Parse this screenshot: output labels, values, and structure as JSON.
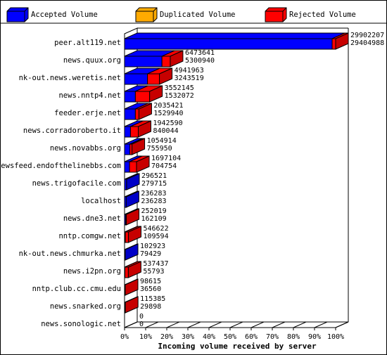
{
  "chart_data": {
    "type": "bar",
    "orientation": "horizontal",
    "stacked": true,
    "xlabel": "Incoming volume received by server",
    "xlim": [
      0,
      100
    ],
    "x_ticks": [
      "0%",
      "10%",
      "20%",
      "30%",
      "40%",
      "50%",
      "60%",
      "70%",
      "80%",
      "90%",
      "100%"
    ],
    "legend_position": "top",
    "series": [
      {
        "name": "Accepted Volume",
        "color": "#0000ff"
      },
      {
        "name": "Duplicated Volume",
        "color": "#ffaa00"
      },
      {
        "name": "Rejected Volume",
        "color": "#ff0000"
      }
    ],
    "rows": [
      {
        "server": "peer.alt119.net",
        "total": "29902207",
        "accepted": "29404988"
      },
      {
        "server": "news.quux.org",
        "total": "6473641",
        "accepted": "5300940"
      },
      {
        "server": "nk-out.news.weretis.net",
        "total": "4941963",
        "accepted": "3243519"
      },
      {
        "server": "news.nntp4.net",
        "total": "3552145",
        "accepted": "1532072"
      },
      {
        "server": "feeder.erje.net",
        "total": "2035421",
        "accepted": "1529940"
      },
      {
        "server": "news.corradoroberto.it",
        "total": "1942590",
        "accepted": "840044"
      },
      {
        "server": "news.novabbs.org",
        "total": "1054914",
        "accepted": "755950"
      },
      {
        "server": "newsfeed.endofthelinebbs.com",
        "total": "1697104",
        "accepted": "704754"
      },
      {
        "server": "news.trigofacile.com",
        "total": "296521",
        "accepted": "279715"
      },
      {
        "server": "localhost",
        "total": "236283",
        "accepted": "236283"
      },
      {
        "server": "news.dne3.net",
        "total": "252019",
        "accepted": "162109"
      },
      {
        "server": "nntp.comgw.net",
        "total": "546622",
        "accepted": "109594"
      },
      {
        "server": "nk-out.news.chmurka.net",
        "total": "102923",
        "accepted": "79429"
      },
      {
        "server": "news.i2pn.org",
        "total": "537437",
        "accepted": "55793"
      },
      {
        "server": "nntp.club.cc.cmu.edu",
        "total": "98615",
        "accepted": "36560"
      },
      {
        "server": "news.snarked.org",
        "total": "115385",
        "accepted": "29898"
      },
      {
        "server": "news.sonologic.net",
        "total": "0",
        "accepted": "0"
      }
    ]
  }
}
